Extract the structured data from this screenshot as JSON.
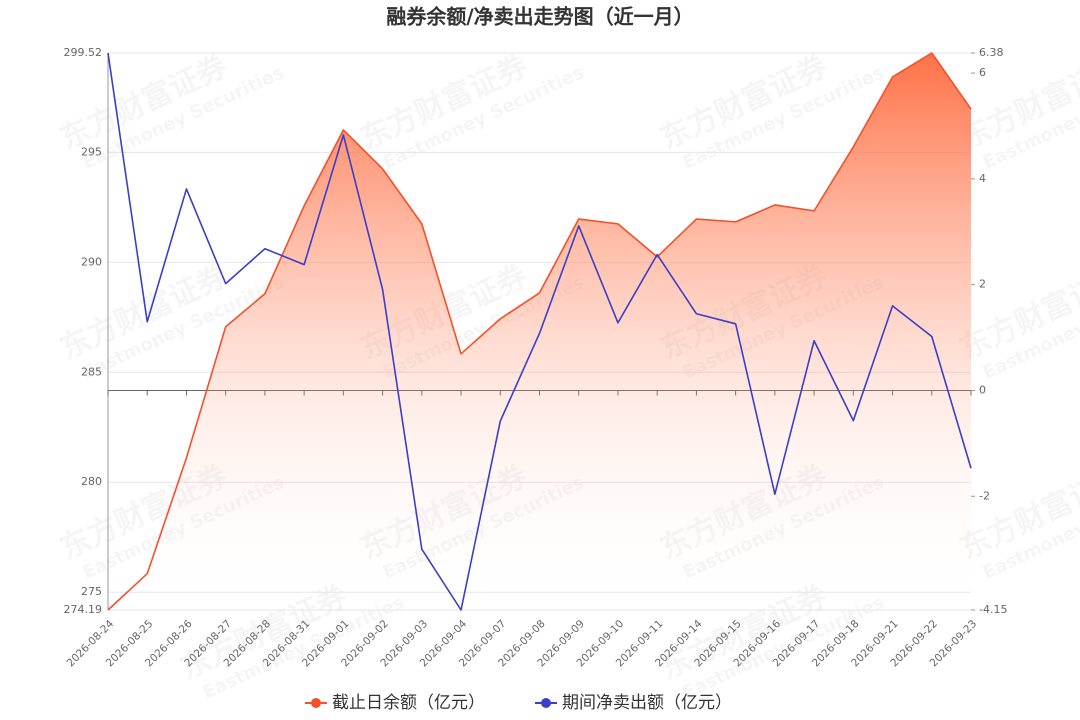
{
  "chart_data": {
    "type": "line",
    "title": "融券余额/净卖出走势图（近一月）",
    "watermark": "东方财富证券",
    "watermark_en": "Eastmoney Securities",
    "categories": [
      "2026-08-24",
      "2026-08-25",
      "2026-08-26",
      "2026-08-27",
      "2026-08-28",
      "2026-08-31",
      "2026-09-01",
      "2026-09-02",
      "2026-09-03",
      "2026-09-04",
      "2026-09-07",
      "2026-09-08",
      "2026-09-09",
      "2026-09-10",
      "2026-09-11",
      "2026-09-14",
      "2026-09-15",
      "2026-09-16",
      "2026-09-17",
      "2026-09-18",
      "2026-09-21",
      "2026-09-22",
      "2026-09-23"
    ],
    "series": [
      {
        "name": "截止日余额（亿元）",
        "color": "#f4502a",
        "area": true,
        "values": [
          274.19,
          275.84,
          281.11,
          287.07,
          288.57,
          292.57,
          296.02,
          294.25,
          291.75,
          285.84,
          287.43,
          288.61,
          291.97,
          291.75,
          290.25,
          291.97,
          291.84,
          292.61,
          292.34,
          295.25,
          298.43,
          299.52,
          296.97
        ]
      },
      {
        "name": "期间净卖出额（亿元）",
        "color": "#3a3fc8",
        "axis": "y2",
        "values": [
          6.38,
          1.3,
          3.81,
          2.02,
          2.68,
          2.38,
          4.83,
          1.91,
          -3.0,
          -4.15,
          -0.58,
          1.08,
          3.11,
          1.28,
          2.57,
          1.45,
          1.26,
          -1.96,
          0.94,
          -0.57,
          1.6,
          1.02,
          -1.47
        ]
      }
    ],
    "ylim": [
      274.19,
      299.52
    ],
    "yticks": [
      274.19,
      275,
      280,
      285,
      290,
      295,
      299.52
    ],
    "y2lim": [
      -4.15,
      6.38
    ],
    "y2ticks": [
      -4.15,
      -2,
      0,
      2,
      4,
      6,
      6.38
    ],
    "grid": true
  }
}
